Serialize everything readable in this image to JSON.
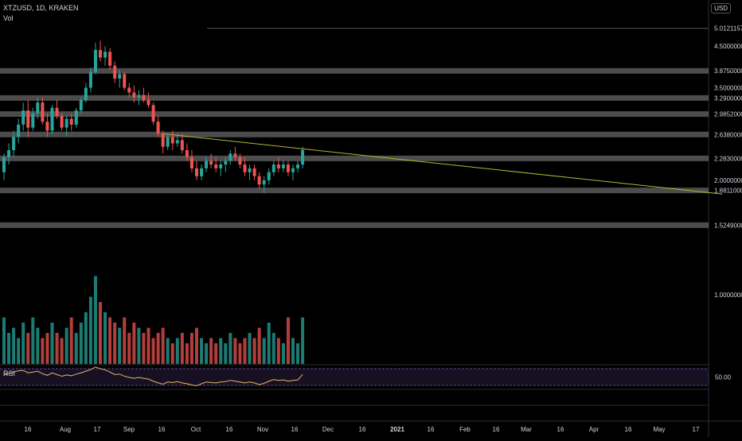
{
  "header": {
    "symbol": "XTZUSD, 1D, KRAKEN",
    "volume_label": "Vol",
    "currency": "USD"
  },
  "rsi": {
    "label": "RSI",
    "level_label": "50.00"
  },
  "colors": {
    "up": "#26a69a",
    "down": "#ef5350",
    "trendline": "#b5b530",
    "zone": "#8a8a8a",
    "rsi_line": "#e8b56a",
    "rsi_band": "#7e57c2"
  },
  "chart_data": {
    "type": "candlestick",
    "y_scale": "log",
    "ylim": [
      0.85,
      5.2
    ],
    "price_labels": [
      "5.01211570",
      "4.50000000",
      "3.87500000",
      "3.50000000",
      "3.29000000",
      "2.98520000",
      "2.63800000",
      "2.28300000",
      "2.00000000",
      "1.88110000",
      "1.52490000",
      "1.00000000"
    ],
    "x_ticks": [
      "16",
      "Aug",
      "17",
      "Sep",
      "16",
      "Oct",
      "16",
      "Nov",
      "16",
      "Dec",
      "16",
      "2021",
      "16",
      "Feb",
      "16",
      "Mar",
      "16",
      "Apr",
      "16",
      "May",
      "17"
    ],
    "horizontal_zones": [
      3.875,
      3.29,
      2.9852,
      2.638,
      2.283,
      1.8811,
      1.5249
    ],
    "trendline": {
      "from": [
        1.0,
        2.65
      ],
      "to": [
        4.52,
        1.84
      ]
    },
    "candles": [
      [
        2.1,
        2.35,
        2.0,
        2.3
      ],
      [
        2.3,
        2.5,
        2.2,
        2.4
      ],
      [
        2.4,
        2.7,
        2.3,
        2.6
      ],
      [
        2.6,
        2.9,
        2.5,
        2.8
      ],
      [
        2.8,
        3.2,
        2.7,
        3.05
      ],
      [
        3.05,
        3.25,
        2.6,
        2.75
      ],
      [
        2.75,
        3.1,
        2.7,
        3.0
      ],
      [
        3.0,
        3.3,
        2.9,
        3.2
      ],
      [
        3.2,
        3.3,
        2.8,
        2.85
      ],
      [
        2.85,
        3.0,
        2.6,
        2.7
      ],
      [
        2.7,
        3.15,
        2.65,
        3.1
      ],
      [
        3.1,
        3.25,
        2.9,
        2.95
      ],
      [
        2.95,
        3.0,
        2.7,
        2.75
      ],
      [
        2.75,
        2.95,
        2.6,
        2.9
      ],
      [
        2.9,
        3.0,
        2.7,
        2.8
      ],
      [
        2.8,
        3.1,
        2.75,
        3.05
      ],
      [
        3.05,
        3.3,
        3.0,
        3.25
      ],
      [
        3.25,
        3.6,
        3.2,
        3.5
      ],
      [
        3.5,
        3.95,
        3.4,
        3.85
      ],
      [
        3.85,
        4.6,
        3.8,
        4.4
      ],
      [
        4.4,
        4.65,
        4.1,
        4.2
      ],
      [
        4.2,
        4.5,
        4.0,
        4.35
      ],
      [
        4.35,
        4.45,
        3.9,
        4.0
      ],
      [
        4.0,
        4.1,
        3.6,
        3.7
      ],
      [
        3.7,
        3.9,
        3.5,
        3.8
      ],
      [
        3.8,
        3.85,
        3.45,
        3.5
      ],
      [
        3.5,
        3.6,
        3.3,
        3.4
      ],
      [
        3.4,
        3.55,
        3.2,
        3.3
      ],
      [
        3.3,
        3.45,
        3.15,
        3.35
      ],
      [
        3.35,
        3.5,
        3.2,
        3.25
      ],
      [
        3.25,
        3.4,
        3.1,
        3.15
      ],
      [
        3.15,
        3.2,
        2.8,
        2.85
      ],
      [
        2.85,
        2.95,
        2.6,
        2.65
      ],
      [
        2.65,
        2.7,
        2.35,
        2.45
      ],
      [
        2.45,
        2.65,
        2.4,
        2.6
      ],
      [
        2.6,
        2.7,
        2.4,
        2.5
      ],
      [
        2.5,
        2.65,
        2.45,
        2.55
      ],
      [
        2.55,
        2.65,
        2.35,
        2.4
      ],
      [
        2.4,
        2.5,
        2.25,
        2.3
      ],
      [
        2.3,
        2.4,
        2.1,
        2.15
      ],
      [
        2.15,
        2.25,
        2.0,
        2.05
      ],
      [
        2.05,
        2.2,
        2.0,
        2.15
      ],
      [
        2.15,
        2.3,
        2.1,
        2.25
      ],
      [
        2.25,
        2.35,
        2.15,
        2.2
      ],
      [
        2.2,
        2.3,
        2.1,
        2.15
      ],
      [
        2.15,
        2.25,
        2.05,
        2.2
      ],
      [
        2.2,
        2.3,
        2.1,
        2.25
      ],
      [
        2.25,
        2.4,
        2.2,
        2.35
      ],
      [
        2.35,
        2.45,
        2.25,
        2.3
      ],
      [
        2.3,
        2.35,
        2.15,
        2.2
      ],
      [
        2.2,
        2.3,
        2.05,
        2.1
      ],
      [
        2.1,
        2.2,
        2.0,
        2.15
      ],
      [
        2.15,
        2.2,
        2.0,
        2.05
      ],
      [
        2.05,
        2.1,
        1.9,
        1.95
      ],
      [
        1.95,
        2.05,
        1.85,
        2.0
      ],
      [
        2.0,
        2.15,
        1.95,
        2.1
      ],
      [
        2.1,
        2.25,
        2.05,
        2.2
      ],
      [
        2.2,
        2.3,
        2.1,
        2.15
      ],
      [
        2.15,
        2.25,
        2.1,
        2.2
      ],
      [
        2.2,
        2.25,
        2.05,
        2.1
      ],
      [
        2.1,
        2.2,
        2.0,
        2.15
      ],
      [
        2.15,
        2.25,
        2.1,
        2.2
      ],
      [
        2.2,
        2.45,
        2.15,
        2.4
      ]
    ],
    "volume": [
      0.9,
      0.6,
      0.7,
      0.5,
      0.8,
      0.6,
      0.9,
      0.7,
      0.5,
      0.6,
      0.8,
      0.6,
      0.5,
      0.7,
      0.9,
      0.6,
      0.8,
      1.0,
      1.3,
      1.7,
      1.2,
      1.0,
      0.9,
      0.8,
      0.7,
      0.9,
      0.6,
      0.8,
      0.7,
      0.6,
      0.7,
      0.5,
      0.6,
      0.7,
      0.5,
      0.4,
      0.5,
      0.6,
      0.4,
      0.6,
      0.7,
      0.5,
      0.4,
      0.5,
      0.4,
      0.5,
      0.4,
      0.6,
      0.5,
      0.4,
      0.5,
      0.6,
      0.5,
      0.7,
      0.5,
      0.8,
      0.6,
      0.5,
      0.4,
      0.9,
      0.5,
      0.4,
      0.9
    ],
    "rsi_values": [
      55,
      58,
      62,
      65,
      66,
      60,
      62,
      64,
      58,
      54,
      60,
      56,
      52,
      55,
      53,
      57,
      60,
      64,
      68,
      74,
      70,
      67,
      62,
      56,
      57,
      52,
      49,
      47,
      49,
      47,
      45,
      40,
      36,
      33,
      38,
      37,
      39,
      36,
      34,
      31,
      29,
      34,
      38,
      37,
      36,
      38,
      39,
      42,
      40,
      38,
      36,
      38,
      36,
      32,
      35,
      40,
      44,
      42,
      43,
      40,
      42,
      43,
      56
    ]
  }
}
